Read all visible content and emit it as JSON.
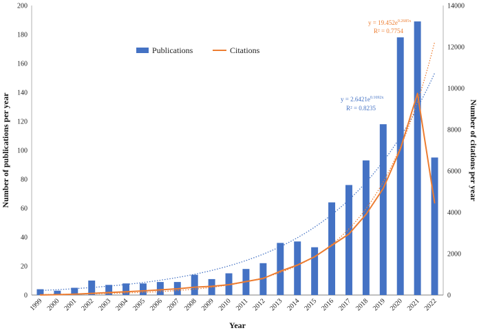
{
  "chart_data": {
    "type": "bar",
    "title": "",
    "xlabel": "Year",
    "ylabel": "Number of publications per year",
    "y2label": "Number of citations per year",
    "ylim": [
      0,
      200
    ],
    "y2lim": [
      0,
      14000
    ],
    "yticks": [
      "0",
      "20",
      "40",
      "60",
      "80",
      "100",
      "120",
      "140",
      "160",
      "180",
      "200"
    ],
    "y2ticks": [
      "0",
      "2000",
      "4000",
      "6000",
      "8000",
      "10000",
      "12000",
      "14000"
    ],
    "categories": [
      "1999",
      "2000",
      "2001",
      "2002",
      "2003",
      "2004",
      "2005",
      "2006",
      "2007",
      "2008",
      "2009",
      "2010",
      "2011",
      "2012",
      "2013",
      "2014",
      "2015",
      "2016",
      "2017",
      "2018",
      "2019",
      "2020",
      "2021",
      "2022"
    ],
    "legend_position": "top-left",
    "series": [
      {
        "name": "Publications",
        "type": "bar",
        "axis": "left",
        "color": "#4472C4",
        "values": [
          4,
          3,
          5,
          10,
          7,
          8,
          8,
          9,
          9,
          14,
          11,
          15,
          18,
          22,
          36,
          37,
          33,
          64,
          76,
          93,
          118,
          178,
          189,
          95
        ]
      },
      {
        "name": "Citations",
        "type": "line",
        "axis": "right",
        "color": "#ED7D31",
        "values": [
          5,
          15,
          40,
          80,
          120,
          160,
          200,
          250,
          300,
          380,
          420,
          500,
          650,
          800,
          1150,
          1450,
          1850,
          2400,
          2950,
          3900,
          5150,
          7050,
          9750,
          4450
        ]
      }
    ],
    "trendlines": [
      {
        "series": "Publications",
        "kind": "exponential",
        "a": 2.6421,
        "b": 0.1692,
        "color": "#4472C4",
        "equation": "y = 2.6421e",
        "exponent": "0.1692x",
        "r2": "R² = 0.8235"
      },
      {
        "series": "Citations",
        "kind": "exponential",
        "a": 19.452,
        "b": 0.2685,
        "color": "#ED7D31",
        "equation": "y = 19.452e",
        "exponent": "0.2685x",
        "r2": "R² = 0.7754"
      }
    ]
  }
}
